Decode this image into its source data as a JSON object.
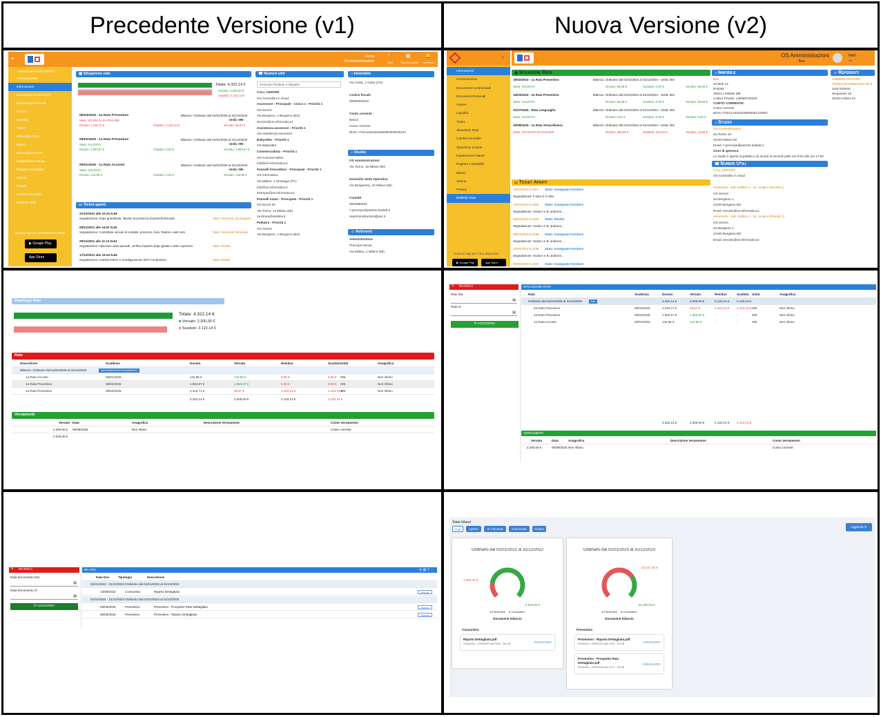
{
  "header": {
    "v1": "Precedente Versione (v1)",
    "v2": "Nuova Versione (v2)"
  },
  "v1_dash": {
    "user": "Aosta",
    "sub": "OS Amministrazioni",
    "top_icons": [
      {
        "icon": "user-icon",
        "label": "Neri"
      },
      {
        "icon": "building-icon",
        "label": "Cambia studio"
      },
      {
        "icon": "bell-icon",
        "label": "Notifiche"
      }
    ],
    "menu_title": "ANAGRAFICA IN CORSO",
    "menu": [
      "Comunicazioni",
      "Informazioni",
      "Documenti Condominiali",
      "Documenti Personali",
      "Fatture",
      "Liquidità",
      "Ticket",
      "Situazione Rate",
      "Bilanci",
      "Situazione Incassi",
      "Imputazione Fatture",
      "Registro Contabilità",
      "Vetrina",
      "Privacy",
      "Cambia Immobile",
      "Bollettini Rate"
    ],
    "store_title": "Scarica app per smartphone e tablet",
    "google": "Google Play",
    "apple": "App Store",
    "rate": {
      "title": "Situazione rate",
      "totale": "Totale: 4.322,14 €",
      "versato": "Versato: 2.200,00 €",
      "scaduto": "Scaduto: 2.122,14 €",
      "items": [
        {
          "name": "08/04/2025 - 2a Rata Preventivo",
          "stato": "Stato: SCADUTA DA PAGARE",
          "dovuto": "Dovuto: 2.215,71 €",
          "scaduto": "Scaduto: 2.122,14 €",
          "versato": "Versato: 93,57 €",
          "bil": "Bilancio: Ordinario dal 01/01/2025 al 31/12/2025",
          "unita": "Unità: 005"
        },
        {
          "name": "08/02/2025 - 1a Rata Preventivo",
          "stato": "Stato: SALDATA",
          "dovuto": "Dovuto: 1.963,57 €",
          "scaduto": "Scaduto: 0,00 €",
          "versato": "Versato: 1.963,57 €",
          "bil": "Bilancio: Ordinario dal 01/01/2025 al 31/12/2025",
          "unita": "Unità: 005"
        },
        {
          "name": "09/01/2025 - 1a Rata Acconto",
          "stato": "Stato: SALDATA",
          "dovuto": "Dovuto: 142,86 €",
          "scaduto": "Scaduto: 0,00 €",
          "versato": "Versato: 142,86 €",
          "bil": "Bilancio: Ordinario dal 01/01/2025 al 31/12/2025",
          "unita": "Unità: 005"
        }
      ]
    },
    "ticket": {
      "title": "Ticket aperti",
      "items": [
        {
          "date": "21/10/2021 alle 10:34 N.59",
          "seg": "Segnalazione: Dopo grandinata, rilevare la presenza di pannelli lesionati.",
          "stato": "Stato: Intervento da Eseguire"
        },
        {
          "date": "08/11/2021 alle 16:51 N.60",
          "seg": "Segnalazione: Controllare sensori di contatto, presenza, fumi, Radon e web cam",
          "stato": "Stato: Intervento Terminato"
        },
        {
          "date": "29/11/2021 alle 11:13 N.64",
          "seg": "Segnalazione: Ispezione stato pannelli, verifica impianto dopo gelata e stato copertura",
          "stato": "Stato: Risolto"
        },
        {
          "date": "17/12/2021 alle 16:44 N.65",
          "seg": "Segnalazione: Cambio lettore e riconfigurazione Wi-Fi condominio",
          "stato": "Stato: Risolto"
        }
      ]
    },
    "numeri": {
      "title": "Numeri utili",
      "search": "Cerca per fornitore o impianto",
      "lines": [
        "CALL CENTER",
        "OS Centralino in cloud",
        "Ascensore - Principale - Civico 1 - Priorità 1",
        "OS Servizi",
        "Via Bergamo, 1 Bergamo (BG)",
        "servizio@os-informatica.it",
        "Assistenza ascensori - Priorità 1",
        "OS Assistenza Ascensori",
        "Babysitter - Priorità 1",
        "OS Babysitter",
        "Commercialista - Priorità 1",
        "OS Commercialisti",
        "info@os-informatica.it",
        "Pannelli fotovoltaici - Principale - Priorità 1",
        "OS Informatica",
        "Via Milano, 1 Giussago (PV)",
        "info@os-informatica.it",
        "esempio@os-informatica.it",
        "Pannelli solari - Principale - Priorità 1",
        "OS Drone srl",
        "Via Torino, 12 Milano (MI)",
        "os-drone@ossilica.it",
        "Pediatra - Priorità 1",
        "OS Servizi",
        "Via Bergamo, 1 Bergamo (BG)"
      ]
    },
    "immobile": {
      "title": "Immobile",
      "lines": [
        "Via Aosta, 1 Aosta (AO)",
        "",
        "Codice fiscale",
        "00000000010",
        "",
        "Conto corrente",
        "Banca",
        "Conto corrente",
        "IBAN: IT02A2343454566000000000123"
      ]
    },
    "studio": {
      "title": "Studio",
      "lines": [
        "OS Amministrazioni",
        "Via Torino, 18 Milano (MI)",
        "",
        "Domicilio Sede Operativa",
        "Via Bergamino, 22 Milano (MI)",
        "",
        "Contatti",
        "0923889283",
        "n.prencipe@partner.baslab.it",
        "osamministrazioni@pec.it"
      ]
    },
    "referenti": {
      "title": "Referenti",
      "lines": [
        "Amministratore",
        "Prencipe Nicola",
        "Via Milano, 1 Milano (MI)"
      ]
    }
  },
  "v2_dash": {
    "sub": "OS Amministrazioni",
    "city": "Bari",
    "user": "Neri",
    "user_sub": "Neri",
    "menu": [
      "Informazioni",
      "Comunicazioni",
      "Documenti Condominiali",
      "Documenti Personali",
      "Fatture",
      "Liquidità",
      "Ticket",
      "Situazione Rate",
      "Cambia Immobile",
      "Situazione Incassi",
      "Imputazione Fatture",
      "Registro Contabilità",
      "Bilanci",
      "Vetrina",
      "Privacy",
      "Bollettini Rate"
    ],
    "store_title": "Scarica l'app per il tuo dispositivo",
    "google": "Google Play",
    "apple": "App Store",
    "rate": {
      "title": "Situazione Rate",
      "items": [
        {
          "name": "15/02/2024 - 1a Rata Preventivo",
          "bil": "Bilancio: Ordinario dal 01/01/2024 al 31/12/2024 - Unità: 002",
          "stato": "Stato: SALDATA",
          "dovuto": "Dovuto: 66,68 €",
          "scaduto": "Scaduto: 0,00 €",
          "versato": "Versato: 66,68 €"
        },
        {
          "name": "15/03/2024 - 2a Rata Preventivo",
          "bil": "Bilancio: Ordinario dal 01/01/2024 al 31/12/2024 - Unità: 002",
          "stato": "Stato: SALDATA",
          "dovuto": "Dovuto: 66,68 €",
          "scaduto": "Scaduto: 0,00 €",
          "versato": "Versato: 66,68 €"
        },
        {
          "name": "31/07/2025 - Rata conguaglio",
          "bil": "Bilancio: Ordinario dal 01/01/2024 al 31/12/2024 - Unità: 002",
          "stato": "Stato: SALDATA",
          "dovuto": "Dovuto: 0,01 €",
          "scaduto": "Scaduto: 0,00 €",
          "versato": "Versato: 0,01 €"
        },
        {
          "name": "30/08/2025 - 1a Rata Straordinaria",
          "bil": "Bilancio: Ordinario dal 01/01/2024 al 31/12/2024 - Unità: 002",
          "stato": "Stato: SCADUTA DA PAGARE",
          "dovuto": "Dovuto: 286,68 €",
          "scaduto": "Scaduto: 243,03 €",
          "versato": "Versato: 43,65 €"
        }
      ]
    },
    "ticket": {
      "title": "Ticket Aperti",
      "items": [
        {
          "date": "12/03/2024 N.1181",
          "stato": "Stato: Assegnato Fornitore",
          "seg": "Segnalazione: Il tubo si è rotto"
        },
        {
          "date": "13/03/2024 N.1185",
          "stato": "Stato: Assegnato Fornitore",
          "seg": "Segnalazione: Scala A e B, androne..."
        },
        {
          "date": "05/03/2024 N.1189",
          "stato": "Stato: Risolto",
          "seg": "Segnalazione: Scala A e B, androne..."
        },
        {
          "date": "08/04/2024 N.2195",
          "stato": "Stato: Assegnato Fornitore",
          "seg": "Segnalazione: Scala A e B, androne..."
        },
        {
          "date": "22/04/2024 N.2196",
          "stato": "Stato: Assegnato Fornitore",
          "seg": "Segnalazione: Scala A e B, androne..."
        },
        {
          "date": "05/05/2024 N.2200",
          "stato": "Stato: Assegnato Fornitore",
          "seg": ""
        }
      ]
    },
    "immobile": {
      "title": "Immobile",
      "lines": [
        "Bari",
        "via Bari 12",
        "limbiate",
        "20812 Limbiate MB",
        "Codice Fiscale: 12659874632S",
        "CONTO CORRENTE:",
        "Conto corrente",
        "IBAN: IT02A123234545600001234567"
      ]
    },
    "referenti": {
      "title": "Referenti",
      "lines": [
        "AMMINISTRATORE",
        "Titolare del trattamento dei d",
        "Sala Roberto",
        "dergamino 18",
        "20150 milano mi"
      ]
    },
    "studio": {
      "title": "Studio",
      "lines": [
        "OS Amministrazioni",
        "via Torino 18",
        "20100 Milano MI",
        "Email: n.prencipe@partner.baslab.it",
        "Orari di apertura:",
        "Lo studio è aperto al pubblico da lunedì al venerdì dalle ore 9:00 alle ore 17:00"
      ]
    },
    "numeri": {
      "title": "Numeri Utili",
      "lines": [
        "CALL CENTER",
        "OS Centralino in cloud",
        "",
        "Ascensore - Edi. Edificio 2 - Sc. scala c (Priorità 1)",
        "OS Servizi",
        "via Bergamo 1",
        "24100 Bergamo BG",
        "Email: servizio@os-informatica.it",
        "Ascensore - Edi. Edificio 1 - Sc. scala a (Priorità 1)",
        "OS Servizi",
        "via Bergamo 1",
        "24100 Bergamo BG",
        "Email: servizio@os-informatica.it"
      ]
    }
  },
  "v1_rate": {
    "riepilogo": "Riepilogo Rate",
    "totale": "Totale: 4.322,14 €",
    "versato": "Versato: 2.200,00 €",
    "scaduto": "Scaduto: 2.122,14 €",
    "rate_title": "Rate",
    "cols": [
      "Descrizione",
      "Scadenza",
      "Dovuto",
      "Versato",
      "Residuo",
      "Scaduto",
      "Unità",
      "Anagrafica"
    ],
    "group": "Bilancio: Ordinario dal 01/01/2025 al 31/12/2025",
    "badge": "INFORMAZIONI PAGAMENTO",
    "rows": [
      [
        "1a Rata Acconto",
        "09/01/2025",
        "142,86 €",
        "142,86 €",
        "0,00 €",
        "0,00 €",
        "005",
        "Neri Albino"
      ],
      [
        "1a Rata Preventivo",
        "08/02/2025",
        "1.963,57 €",
        "1.963,57 €",
        "0,00 €",
        "0,00 €",
        "005",
        "Neri Albino"
      ],
      [
        "2a Rata Preventivo",
        "08/04/2025",
        "2.215,71 €",
        "93,57 €",
        "2.122,14 €",
        "2.122,14 €",
        "005",
        "Neri Albino"
      ]
    ],
    "tot": [
      "4.322,14 €",
      "2.200,00 €",
      "2.122,14 €",
      "2.122,14 €"
    ],
    "vers_title": "Versamenti",
    "vers_cols": [
      "Versato",
      "Data",
      "Anagrafica",
      "Descrizione Versamento",
      "Conto Versamento"
    ],
    "vers_row": [
      "2.200,00 €",
      "05/09/2025",
      "Neri Albino",
      "",
      "Conto corrente"
    ],
    "vers_tot": "2.200,00 €"
  },
  "v2_rate": {
    "ricerca": "RICERCA",
    "rate_dal": "Rate Dal",
    "rate_al": "Rate Al",
    "aggiorna": "AGGIORNA",
    "title": "SITUAZIONE RATE",
    "cols": [
      "Rata",
      "Scadenza",
      "Dovuto",
      "Versato",
      "Residuo",
      "Scaduto",
      "Unità",
      "Anagrafica"
    ],
    "group": "Ordinario dal 01/01/2025 al 31/12/2025",
    "badge": "Info",
    "group_vals": [
      "4.322,14 €",
      "2.200,00 €",
      "2.122,14 €",
      "2.122,14 €"
    ],
    "rows": [
      [
        "2a Rata Preventivo",
        "08/04/2025",
        "2.215,71 €",
        "93,57 €",
        "2.122,14 €",
        "2.122,14 €",
        "005",
        "Neri Albino"
      ],
      [
        "1a Rata Preventivo",
        "08/02/2025",
        "1.963,57 €",
        "1.963,57 €",
        "-",
        "-",
        "005",
        "Neri Albino"
      ],
      [
        "1a Rata Acconto",
        "09/01/2025",
        "142,86 €",
        "142,86 €",
        "-",
        "-",
        "005",
        "Neri Albino"
      ]
    ],
    "tot": [
      "4.322,14 €",
      "2.200,00 €",
      "2.122,14 €",
      "2.122,14 €"
    ],
    "vers_title": "VERSAMENTI",
    "vers_cols": [
      "Versato",
      "Data",
      "Anagrafica",
      "Descrizione Versamento",
      "Conto Versamento"
    ],
    "vers_row": [
      "2.200,00 €",
      "05/09/2025",
      "Neri Albino",
      "",
      "Conto corrente"
    ]
  },
  "v1_bilanci": {
    "ricerca": "RICERCA",
    "dal": "Data Documento Dal",
    "al": "Data Documento Al",
    "aggiorna": "AGGIORNA",
    "title": "BILANCI",
    "cols": [
      "Data Doc",
      "Tipologia",
      "Descrizione"
    ],
    "rows": [
      {
        "g": true,
        "t": "01/01/2023 - 31/12/2023 Ordinario dal 01/01/2023 al 31/12/2023"
      },
      {
        "d": "13/09/2022",
        "tip": "Consuntivo",
        "desc": "Riparto Dettagliato",
        "btn": "Scarica"
      },
      {
        "g": true,
        "t": "01/01/2024 - 31/12/2024 Ordinario dal 01/01/2024 al 31/12/2024"
      },
      {
        "d": "03/03/2025",
        "tip": "Preventivo",
        "desc": "Preventivo - Prospetto Rate Dettagliato",
        "btn": "Scarica"
      },
      {
        "d": "06/05/2024",
        "tip": "Preventivo",
        "desc": "Preventivo - Riparto Dettagliato",
        "btn": "Scarica"
      }
    ]
  },
  "v2_bilanci": {
    "stato": "Stato bilanci",
    "filters": [
      "Tutti",
      "Aperto",
      "In Chiusura",
      "Convocato",
      "Chiuso"
    ],
    "aggiorna": "Aggiorna",
    "cards": [
      {
        "title": "Ordinario dal 01/01/2022 al 31/12/2022",
        "val_a": "1.500,40 €",
        "val_b": "6.500,00 €",
        "cons_share": 0.19,
        "legend": [
          "Preventivo",
          "Consuntivo"
        ],
        "docs": "Documenti bilancio",
        "section": "Consuntivo",
        "files": [
          {
            "name": "Riparto Dettagliato.pdf",
            "meta": "Consuntivo - 13/09/2022 alle 09:56 - 254 kB",
            "btn": "VISUALIZZA"
          }
        ]
      },
      {
        "title": "Ordinario dal 01/01/2023 al 31/12/2023",
        "val_a": "43.647,30 €",
        "val_b": "61.800,00 €",
        "cons_share": 0.71,
        "legend": [
          "Preventivo",
          "Consuntivo"
        ],
        "docs": "Documenti bilancio",
        "section": "Preventivo",
        "files": [
          {
            "name": "Preventivo - Riparto Dettagliato.pdf",
            "meta": "Preventivo - 06/05/2024 alle 10:52 - 212 kB",
            "btn": "VISUALIZZA"
          },
          {
            "name": "Preventivo - Prospetto Rata Dettagliato.pdf",
            "meta": "Preventivo - 03/03/2025 alle 11:21 - 144 kB",
            "btn": "VISUALIZZA"
          }
        ]
      }
    ]
  },
  "colors": {
    "orange": "#f7941d",
    "yellow": "#f5c02a",
    "blue": "#2b7fd9",
    "red": "#e3191c",
    "green": "#22a233"
  }
}
